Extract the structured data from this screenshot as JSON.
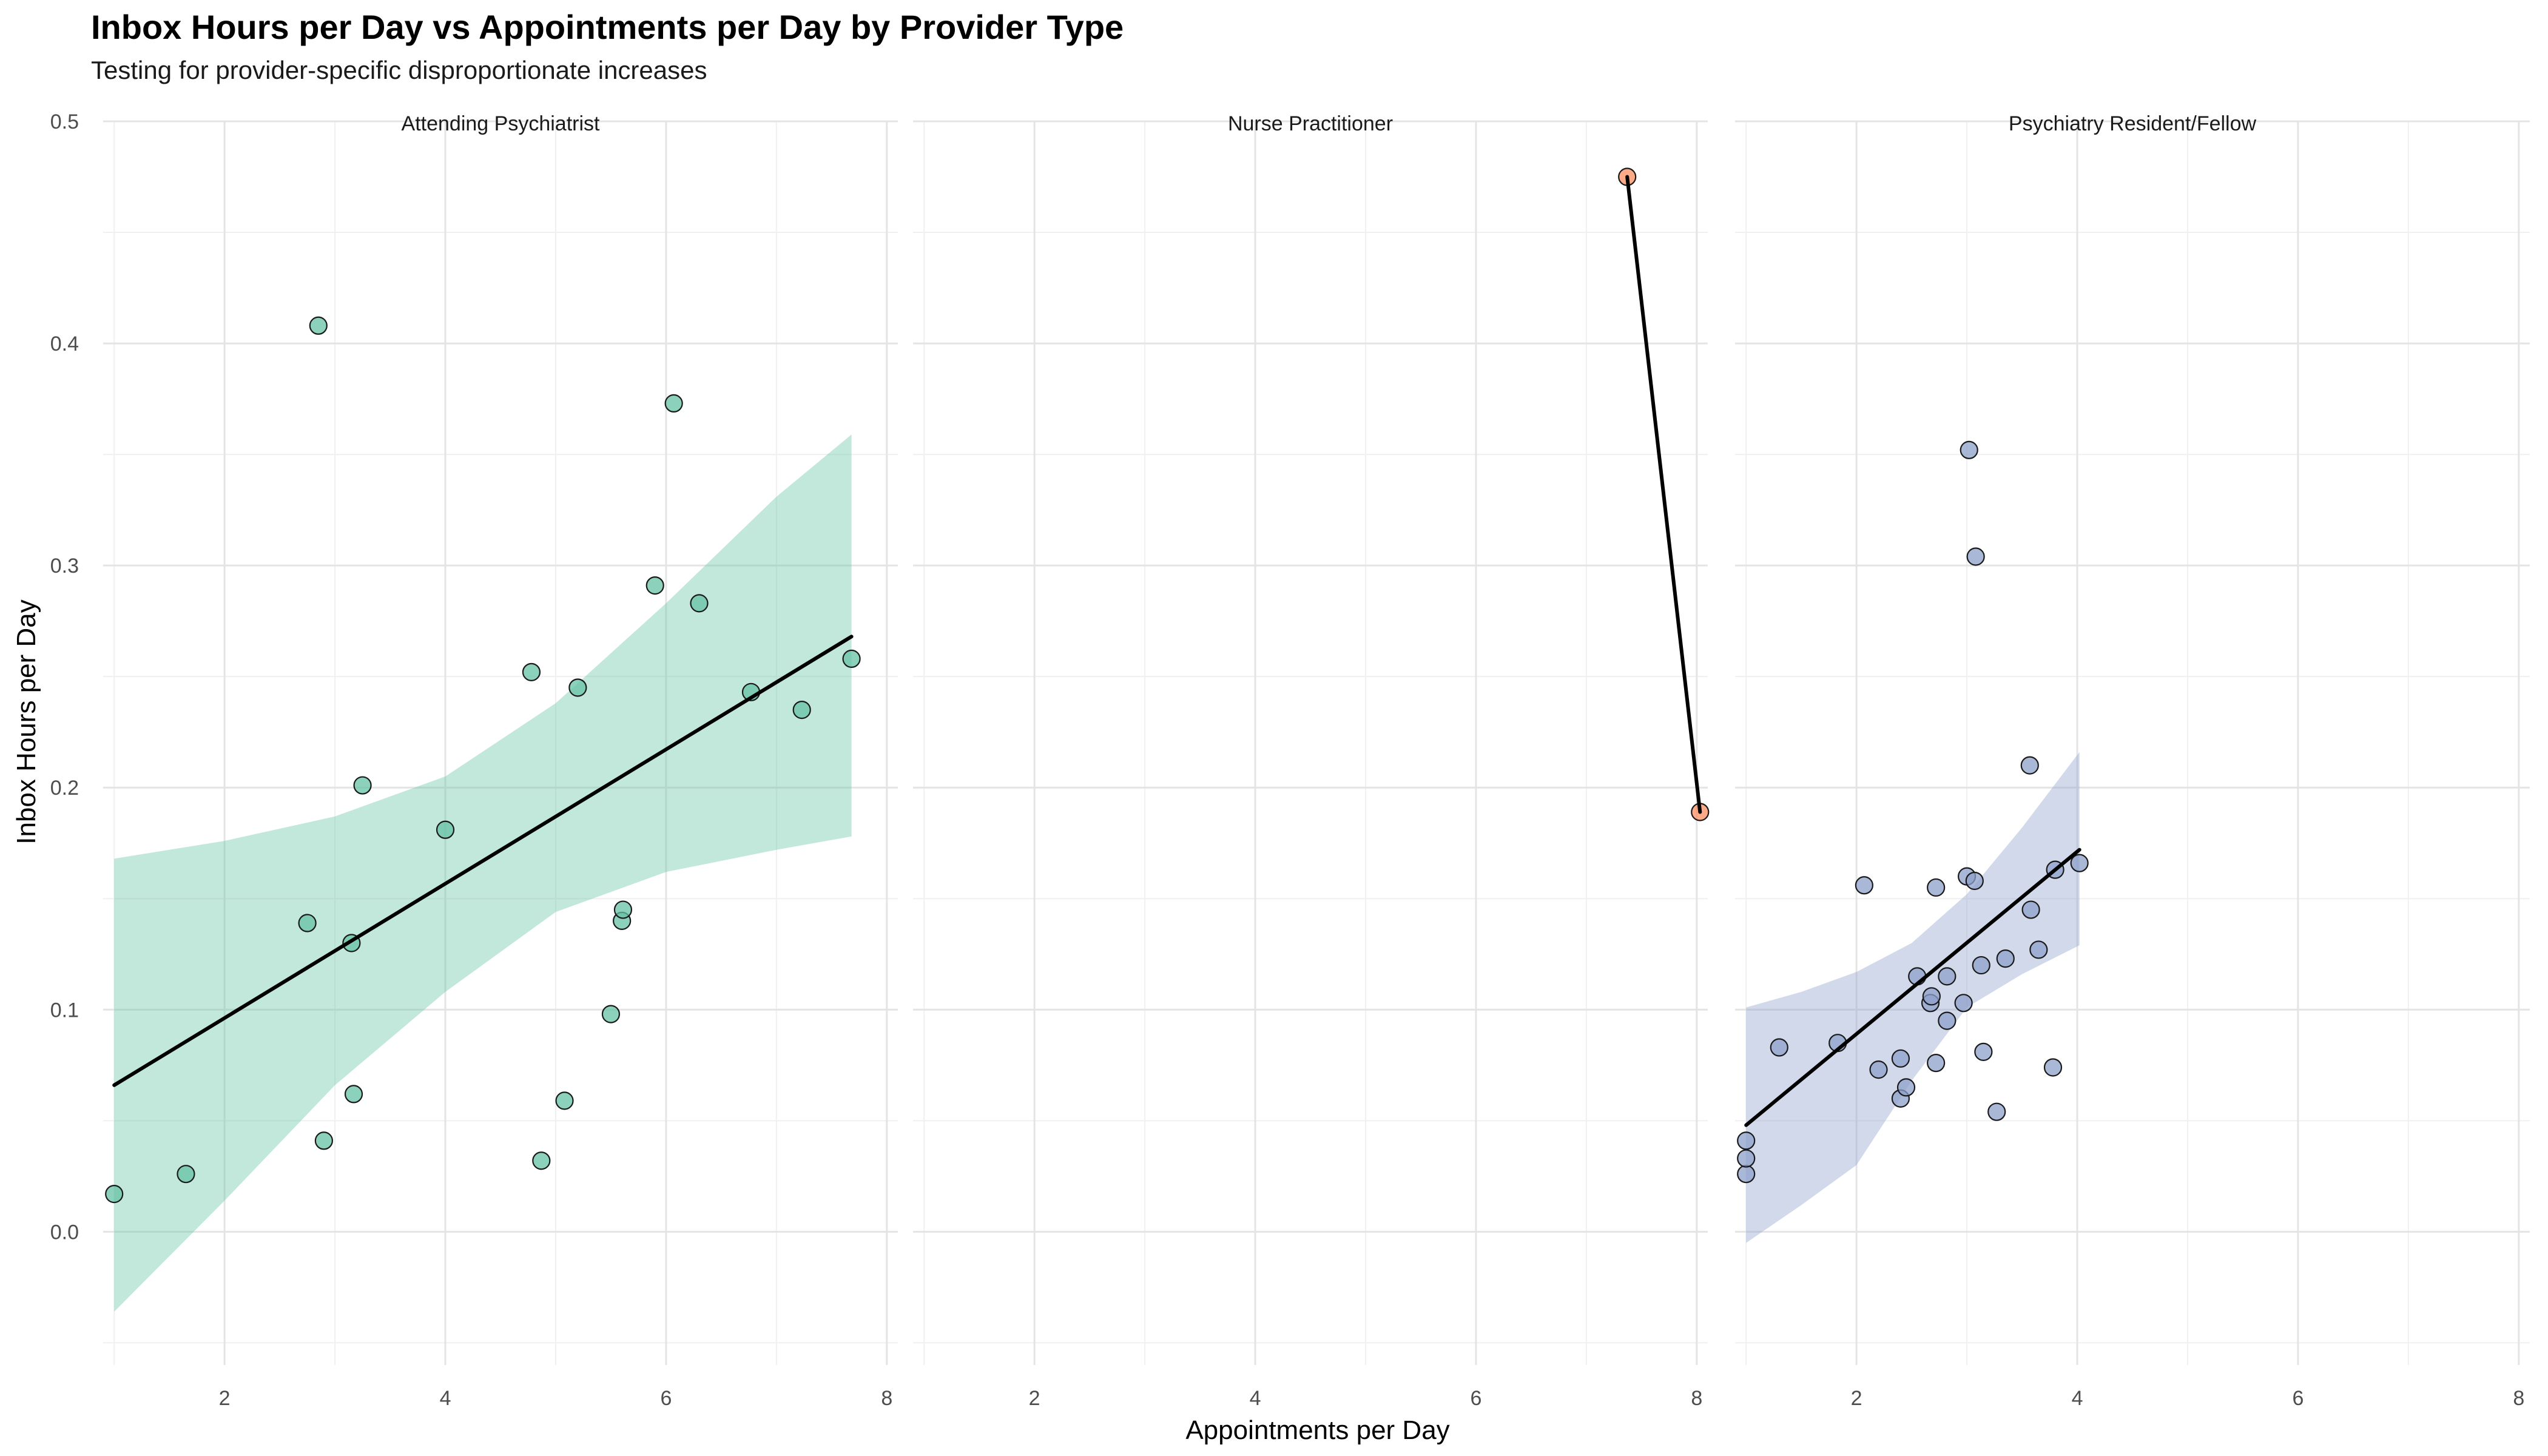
{
  "title": "Inbox Hours per Day vs Appointments per Day by Provider Type",
  "subtitle": "Testing for provider-specific disproportionate increases",
  "chart_data": {
    "type": "scatter",
    "facet_layout": "1 row x 3 columns, shared axes",
    "xlabel": "Appointments per Day",
    "ylabel": "Inbox Hours per Day",
    "xlim": [
      0.9,
      8.1
    ],
    "ylim": [
      -0.06,
      0.5
    ],
    "x_ticks": [
      "2",
      "4",
      "6",
      "8"
    ],
    "x_tick_values": [
      2,
      4,
      6,
      8
    ],
    "y_ticks": [
      "0.0",
      "0.1",
      "0.2",
      "0.3",
      "0.4",
      "0.5"
    ],
    "y_tick_values": [
      0.0,
      0.1,
      0.2,
      0.3,
      0.4,
      0.5
    ],
    "grid": true,
    "legend": "none",
    "panels": [
      {
        "name": "Attending Psychiatrist",
        "color": "#66c2a5",
        "points": [
          {
            "x": 1.0,
            "y": 0.017
          },
          {
            "x": 1.65,
            "y": 0.026
          },
          {
            "x": 2.75,
            "y": 0.139
          },
          {
            "x": 2.85,
            "y": 0.408
          },
          {
            "x": 2.9,
            "y": 0.041
          },
          {
            "x": 3.15,
            "y": 0.13
          },
          {
            "x": 3.17,
            "y": 0.062
          },
          {
            "x": 3.25,
            "y": 0.201
          },
          {
            "x": 4.0,
            "y": 0.181
          },
          {
            "x": 4.78,
            "y": 0.252
          },
          {
            "x": 4.87,
            "y": 0.032
          },
          {
            "x": 5.08,
            "y": 0.059
          },
          {
            "x": 5.2,
            "y": 0.245
          },
          {
            "x": 5.5,
            "y": 0.098
          },
          {
            "x": 5.6,
            "y": 0.14
          },
          {
            "x": 5.61,
            "y": 0.145
          },
          {
            "x": 5.9,
            "y": 0.291
          },
          {
            "x": 6.07,
            "y": 0.373
          },
          {
            "x": 6.3,
            "y": 0.283
          },
          {
            "x": 6.77,
            "y": 0.243
          },
          {
            "x": 7.23,
            "y": 0.235
          },
          {
            "x": 7.68,
            "y": 0.258
          }
        ],
        "fit": {
          "x": [
            1.0,
            7.68
          ],
          "y": [
            0.066,
            0.268
          ]
        },
        "ci_x": [
          1.0,
          2.0,
          3.0,
          4.0,
          5.0,
          6.0,
          7.0,
          7.68
        ],
        "ci_upper": [
          0.168,
          0.176,
          0.187,
          0.205,
          0.238,
          0.283,
          0.331,
          0.359
        ],
        "ci_lower": [
          -0.036,
          0.014,
          0.066,
          0.108,
          0.144,
          0.162,
          0.172,
          0.178
        ]
      },
      {
        "name": "Nurse Practitioner",
        "color": "#fc8d62",
        "points": [
          {
            "x": 7.37,
            "y": 0.475
          },
          {
            "x": 8.03,
            "y": 0.189
          }
        ],
        "fit": {
          "x": [
            7.37,
            8.03
          ],
          "y": [
            0.475,
            0.189
          ]
        }
      },
      {
        "name": "Psychiatry Resident/Fellow",
        "color": "#8da0cb",
        "points": [
          {
            "x": 1.0,
            "y": 0.026
          },
          {
            "x": 1.0,
            "y": 0.033
          },
          {
            "x": 1.0,
            "y": 0.041
          },
          {
            "x": 1.3,
            "y": 0.083
          },
          {
            "x": 1.83,
            "y": 0.085
          },
          {
            "x": 2.07,
            "y": 0.156
          },
          {
            "x": 2.2,
            "y": 0.073
          },
          {
            "x": 2.4,
            "y": 0.06
          },
          {
            "x": 2.4,
            "y": 0.078
          },
          {
            "x": 2.45,
            "y": 0.065
          },
          {
            "x": 2.55,
            "y": 0.115
          },
          {
            "x": 2.67,
            "y": 0.103
          },
          {
            "x": 2.68,
            "y": 0.106
          },
          {
            "x": 2.72,
            "y": 0.076
          },
          {
            "x": 2.72,
            "y": 0.155
          },
          {
            "x": 2.82,
            "y": 0.095
          },
          {
            "x": 2.82,
            "y": 0.115
          },
          {
            "x": 2.97,
            "y": 0.103
          },
          {
            "x": 3.0,
            "y": 0.16
          },
          {
            "x": 3.02,
            "y": 0.352
          },
          {
            "x": 3.07,
            "y": 0.158
          },
          {
            "x": 3.08,
            "y": 0.304
          },
          {
            "x": 3.13,
            "y": 0.12
          },
          {
            "x": 3.15,
            "y": 0.081
          },
          {
            "x": 3.27,
            "y": 0.054
          },
          {
            "x": 3.35,
            "y": 0.123
          },
          {
            "x": 3.57,
            "y": 0.21
          },
          {
            "x": 3.58,
            "y": 0.145
          },
          {
            "x": 3.65,
            "y": 0.127
          },
          {
            "x": 3.78,
            "y": 0.074
          },
          {
            "x": 3.8,
            "y": 0.163
          },
          {
            "x": 4.02,
            "y": 0.166
          }
        ],
        "fit": {
          "x": [
            1.0,
            4.02
          ],
          "y": [
            0.048,
            0.172
          ]
        },
        "ci_x": [
          1.0,
          1.5,
          2.0,
          2.5,
          3.0,
          3.5,
          4.02
        ],
        "ci_upper": [
          0.101,
          0.108,
          0.117,
          0.13,
          0.152,
          0.182,
          0.216
        ],
        "ci_lower": [
          -0.005,
          0.012,
          0.03,
          0.068,
          0.101,
          0.116,
          0.129
        ]
      }
    ]
  }
}
